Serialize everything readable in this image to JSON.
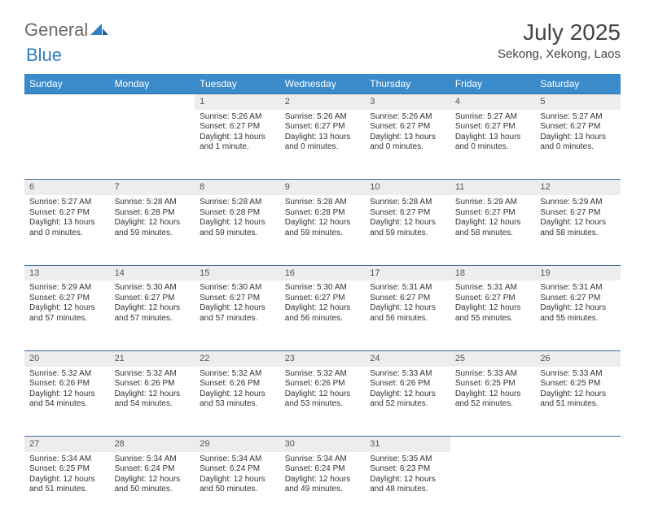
{
  "brand": {
    "part1": "General",
    "part2": "Blue"
  },
  "title": "July 2025",
  "location": "Sekong, Xekong, Laos",
  "colors": {
    "header_bg": "#3b8bca",
    "header_text": "#ffffff",
    "daynum_bg": "#ededed",
    "row_border": "#3b6fa0",
    "logo_gray": "#6b6b6b",
    "logo_blue": "#2f7fc1",
    "text": "#333333",
    "background": "#ffffff"
  },
  "typography": {
    "month_title_fontsize": 28,
    "location_fontsize": 15,
    "weekday_fontsize": 12,
    "daynum_fontsize": 11,
    "body_fontsize": 10
  },
  "weekdays": [
    "Sunday",
    "Monday",
    "Tuesday",
    "Wednesday",
    "Thursday",
    "Friday",
    "Saturday"
  ],
  "weeks": [
    [
      null,
      null,
      {
        "n": "1",
        "sunrise": "Sunrise: 5:26 AM",
        "sunset": "Sunset: 6:27 PM",
        "day1": "Daylight: 13 hours",
        "day2": "and 1 minute."
      },
      {
        "n": "2",
        "sunrise": "Sunrise: 5:26 AM",
        "sunset": "Sunset: 6:27 PM",
        "day1": "Daylight: 13 hours",
        "day2": "and 0 minutes."
      },
      {
        "n": "3",
        "sunrise": "Sunrise: 5:26 AM",
        "sunset": "Sunset: 6:27 PM",
        "day1": "Daylight: 13 hours",
        "day2": "and 0 minutes."
      },
      {
        "n": "4",
        "sunrise": "Sunrise: 5:27 AM",
        "sunset": "Sunset: 6:27 PM",
        "day1": "Daylight: 13 hours",
        "day2": "and 0 minutes."
      },
      {
        "n": "5",
        "sunrise": "Sunrise: 5:27 AM",
        "sunset": "Sunset: 6:27 PM",
        "day1": "Daylight: 13 hours",
        "day2": "and 0 minutes."
      }
    ],
    [
      {
        "n": "6",
        "sunrise": "Sunrise: 5:27 AM",
        "sunset": "Sunset: 6:27 PM",
        "day1": "Daylight: 13 hours",
        "day2": "and 0 minutes."
      },
      {
        "n": "7",
        "sunrise": "Sunrise: 5:28 AM",
        "sunset": "Sunset: 6:28 PM",
        "day1": "Daylight: 12 hours",
        "day2": "and 59 minutes."
      },
      {
        "n": "8",
        "sunrise": "Sunrise: 5:28 AM",
        "sunset": "Sunset: 6:28 PM",
        "day1": "Daylight: 12 hours",
        "day2": "and 59 minutes."
      },
      {
        "n": "9",
        "sunrise": "Sunrise: 5:28 AM",
        "sunset": "Sunset: 6:28 PM",
        "day1": "Daylight: 12 hours",
        "day2": "and 59 minutes."
      },
      {
        "n": "10",
        "sunrise": "Sunrise: 5:28 AM",
        "sunset": "Sunset: 6:27 PM",
        "day1": "Daylight: 12 hours",
        "day2": "and 59 minutes."
      },
      {
        "n": "11",
        "sunrise": "Sunrise: 5:29 AM",
        "sunset": "Sunset: 6:27 PM",
        "day1": "Daylight: 12 hours",
        "day2": "and 58 minutes."
      },
      {
        "n": "12",
        "sunrise": "Sunrise: 5:29 AM",
        "sunset": "Sunset: 6:27 PM",
        "day1": "Daylight: 12 hours",
        "day2": "and 58 minutes."
      }
    ],
    [
      {
        "n": "13",
        "sunrise": "Sunrise: 5:29 AM",
        "sunset": "Sunset: 6:27 PM",
        "day1": "Daylight: 12 hours",
        "day2": "and 57 minutes."
      },
      {
        "n": "14",
        "sunrise": "Sunrise: 5:30 AM",
        "sunset": "Sunset: 6:27 PM",
        "day1": "Daylight: 12 hours",
        "day2": "and 57 minutes."
      },
      {
        "n": "15",
        "sunrise": "Sunrise: 5:30 AM",
        "sunset": "Sunset: 6:27 PM",
        "day1": "Daylight: 12 hours",
        "day2": "and 57 minutes."
      },
      {
        "n": "16",
        "sunrise": "Sunrise: 5:30 AM",
        "sunset": "Sunset: 6:27 PM",
        "day1": "Daylight: 12 hours",
        "day2": "and 56 minutes."
      },
      {
        "n": "17",
        "sunrise": "Sunrise: 5:31 AM",
        "sunset": "Sunset: 6:27 PM",
        "day1": "Daylight: 12 hours",
        "day2": "and 56 minutes."
      },
      {
        "n": "18",
        "sunrise": "Sunrise: 5:31 AM",
        "sunset": "Sunset: 6:27 PM",
        "day1": "Daylight: 12 hours",
        "day2": "and 55 minutes."
      },
      {
        "n": "19",
        "sunrise": "Sunrise: 5:31 AM",
        "sunset": "Sunset: 6:27 PM",
        "day1": "Daylight: 12 hours",
        "day2": "and 55 minutes."
      }
    ],
    [
      {
        "n": "20",
        "sunrise": "Sunrise: 5:32 AM",
        "sunset": "Sunset: 6:26 PM",
        "day1": "Daylight: 12 hours",
        "day2": "and 54 minutes."
      },
      {
        "n": "21",
        "sunrise": "Sunrise: 5:32 AM",
        "sunset": "Sunset: 6:26 PM",
        "day1": "Daylight: 12 hours",
        "day2": "and 54 minutes."
      },
      {
        "n": "22",
        "sunrise": "Sunrise: 5:32 AM",
        "sunset": "Sunset: 6:26 PM",
        "day1": "Daylight: 12 hours",
        "day2": "and 53 minutes."
      },
      {
        "n": "23",
        "sunrise": "Sunrise: 5:32 AM",
        "sunset": "Sunset: 6:26 PM",
        "day1": "Daylight: 12 hours",
        "day2": "and 53 minutes."
      },
      {
        "n": "24",
        "sunrise": "Sunrise: 5:33 AM",
        "sunset": "Sunset: 6:26 PM",
        "day1": "Daylight: 12 hours",
        "day2": "and 52 minutes."
      },
      {
        "n": "25",
        "sunrise": "Sunrise: 5:33 AM",
        "sunset": "Sunset: 6:25 PM",
        "day1": "Daylight: 12 hours",
        "day2": "and 52 minutes."
      },
      {
        "n": "26",
        "sunrise": "Sunrise: 5:33 AM",
        "sunset": "Sunset: 6:25 PM",
        "day1": "Daylight: 12 hours",
        "day2": "and 51 minutes."
      }
    ],
    [
      {
        "n": "27",
        "sunrise": "Sunrise: 5:34 AM",
        "sunset": "Sunset: 6:25 PM",
        "day1": "Daylight: 12 hours",
        "day2": "and 51 minutes."
      },
      {
        "n": "28",
        "sunrise": "Sunrise: 5:34 AM",
        "sunset": "Sunset: 6:24 PM",
        "day1": "Daylight: 12 hours",
        "day2": "and 50 minutes."
      },
      {
        "n": "29",
        "sunrise": "Sunrise: 5:34 AM",
        "sunset": "Sunset: 6:24 PM",
        "day1": "Daylight: 12 hours",
        "day2": "and 50 minutes."
      },
      {
        "n": "30",
        "sunrise": "Sunrise: 5:34 AM",
        "sunset": "Sunset: 6:24 PM",
        "day1": "Daylight: 12 hours",
        "day2": "and 49 minutes."
      },
      {
        "n": "31",
        "sunrise": "Sunrise: 5:35 AM",
        "sunset": "Sunset: 6:23 PM",
        "day1": "Daylight: 12 hours",
        "day2": "and 48 minutes."
      },
      null,
      null
    ]
  ]
}
